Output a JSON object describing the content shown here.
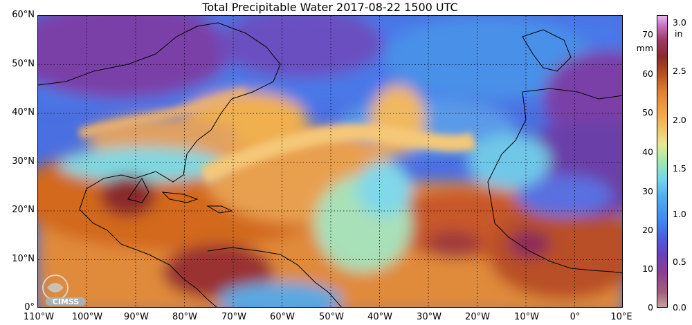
{
  "title": "Total Precipitable Water  2017-08-22 1500 UTC",
  "lat_labels": [
    "60°N",
    "50°N",
    "40°N",
    "30°N",
    "20°N",
    "10°N",
    "0°"
  ],
  "lon_labels": [
    "110°W",
    "100°W",
    "90°W",
    "80°W",
    "70°W",
    "60°W",
    "50°W",
    "40°W",
    "30°W",
    "20°W",
    "10°W",
    "0°",
    "10°E"
  ],
  "colorbar": {
    "mm_unit": "mm",
    "in_unit": "in",
    "mm_ticks": [
      "70",
      "60",
      "50",
      "40",
      "30",
      "20",
      "10",
      "0"
    ],
    "in_ticks": [
      "3.0",
      "2.5",
      "2.0",
      "1.5",
      "1.0",
      "0.5",
      "0.0"
    ]
  },
  "logo_text": "CIMSS",
  "colors": {
    "moist": "#d2691e",
    "very_moist": "#8b2a2a",
    "mid": "#f0c060",
    "dryish": "#70d8e8",
    "dry": "#3f7fe8",
    "very_dry": "#7a3fa8"
  }
}
